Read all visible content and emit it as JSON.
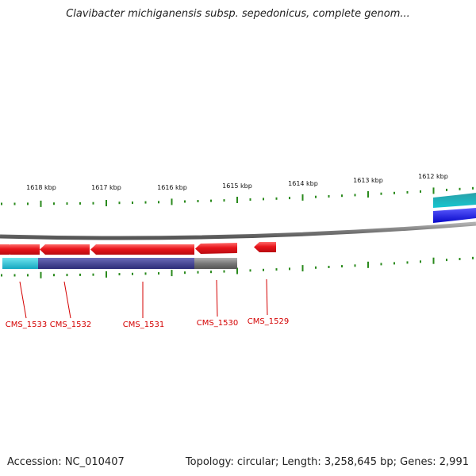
{
  "title": "Clavibacter michiganensis subsp. sepedonicus, complete genom...",
  "footer": {
    "accession": "Accession: NC_010407",
    "summary": "Topology: circular; Length: 3,258,645 bp; Genes: 2,991"
  },
  "scale_labels": [
    "1618 kbp",
    "1617 kbp",
    "1616 kbp",
    "1615 kbp",
    "1614 kbp",
    "1613 kbp",
    "1612 kbp"
  ],
  "genes": [
    "CMS_1533",
    "CMS_1532",
    "CMS_1531",
    "CMS_1530",
    "CMS_1529"
  ],
  "colors": {
    "gene_arrow": "#e8151b",
    "gene_label": "#d40000",
    "tick": "#2a8a1c",
    "backbone": "#8a8a8a",
    "cyan_feature": "#22c4d4",
    "navy_feature": "#3b3b8e",
    "gray_feature": "#6e6e6e",
    "blue_feature": "#1010e0"
  }
}
